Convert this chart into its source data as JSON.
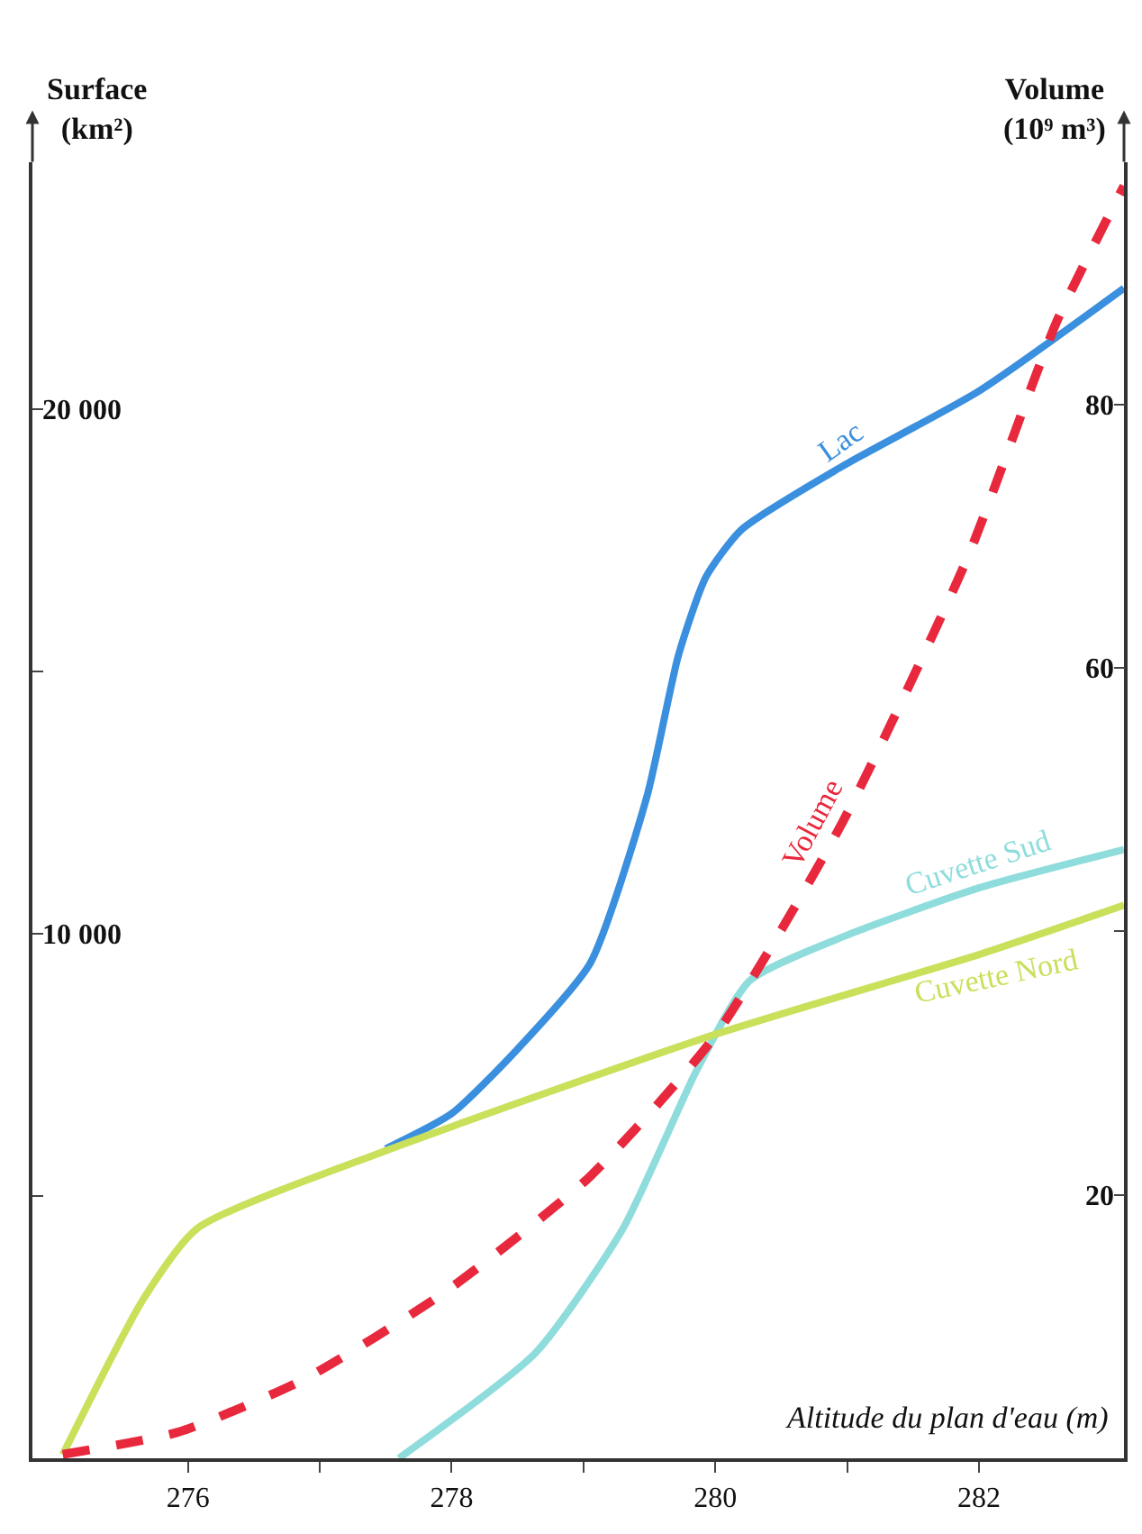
{
  "chart_data": {
    "type": "line",
    "xlabel": "Altitude du plan d'eau (m)",
    "ylabel": "Surface\n(km²)",
    "y2label": "Volume\n(10⁹ m³)",
    "xlim": [
      274.82,
      283.1
    ],
    "xticks": [
      276,
      {
        "value": 277,
        "label": null
      },
      278,
      {
        "value": 279,
        "label": null
      },
      280,
      {
        "value": 281,
        "label": null
      },
      282
    ],
    "ylim": [
      0,
      24700
    ],
    "yticks": [
      {
        "value": 5000,
        "label": null
      },
      {
        "value": 10000,
        "label": "10 000"
      },
      {
        "value": 15000,
        "label": null
      },
      {
        "value": 20000,
        "label": "20 000"
      }
    ],
    "y2lim": [
      0,
      98.4
    ],
    "y2ticks": [
      20,
      {
        "value": 40,
        "label": null
      },
      60,
      80
    ],
    "legend": false,
    "marker": "none",
    "series": [
      {
        "name": "Lac",
        "color": "#3a8fde",
        "x": [
          277.5,
          278.0,
          278.5,
          279.05,
          279.48,
          279.72,
          279.93,
          280.2,
          280.96,
          282.0,
          283.1
        ],
        "values": [
          5900,
          6570,
          7800,
          9430,
          12600,
          15300,
          16800,
          17700,
          18900,
          20340,
          22300
        ]
      },
      {
        "name": "Cuvette Sud",
        "color": "#8fdcdc",
        "x": [
          277.6,
          278.64,
          279.3,
          279.86,
          280.26,
          280.96,
          282.0,
          283.1
        ],
        "values": [
          0,
          2020,
          4380,
          7400,
          9100,
          9930,
          10870,
          11600
        ]
      },
      {
        "name": "Cuvette Nord",
        "color": "#c8e05a",
        "x": [
          275.05,
          275.66,
          276.07,
          277.5,
          280.0,
          282.0,
          283.1
        ],
        "values": [
          70,
          3030,
          4380,
          5860,
          8080,
          9600,
          10540
        ]
      },
      {
        "name": "Volume",
        "color": "#e8283c",
        "axis": "y2",
        "line_style": "dashed",
        "x": [
          275.05,
          275.93,
          276.88,
          277.96,
          279.05,
          280.0,
          280.96,
          281.91,
          282.59,
          283.1
        ],
        "values": [
          0.3,
          2.0,
          6.0,
          12.7,
          21.4,
          32.1,
          48.2,
          68.3,
          86.3,
          96.6
        ]
      }
    ]
  }
}
